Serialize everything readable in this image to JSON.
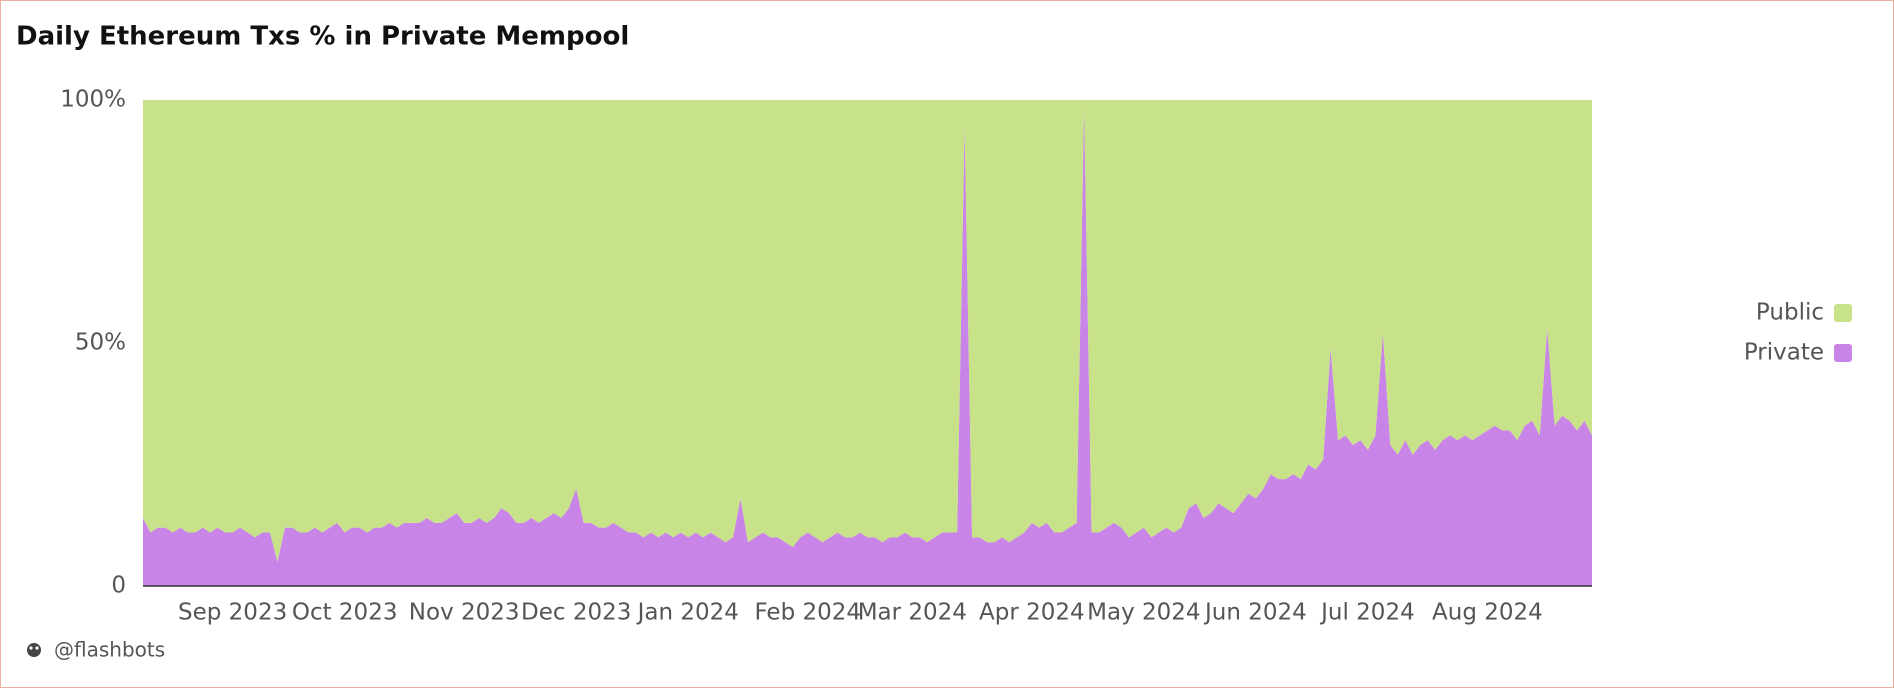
{
  "chart_data": {
    "type": "area",
    "stacked": true,
    "title": "Daily Ethereum Txs % in Private Mempool",
    "categories": [
      null,
      null,
      null,
      null,
      null,
      null,
      null,
      null,
      null,
      null,
      null,
      null,
      "Sep 2023",
      null,
      null,
      null,
      null,
      null,
      null,
      null,
      null,
      null,
      null,
      null,
      null,
      null,
      null,
      "Oct 2023",
      null,
      null,
      null,
      null,
      null,
      null,
      null,
      null,
      null,
      null,
      null,
      null,
      null,
      null,
      null,
      "Nov 2023",
      null,
      null,
      null,
      null,
      null,
      null,
      null,
      null,
      null,
      null,
      null,
      null,
      null,
      null,
      "Dec 2023",
      null,
      null,
      null,
      null,
      null,
      null,
      null,
      null,
      null,
      null,
      null,
      null,
      null,
      null,
      "Jan 2024",
      null,
      null,
      null,
      null,
      null,
      null,
      null,
      null,
      null,
      null,
      null,
      null,
      null,
      null,
      null,
      "Feb 2024",
      null,
      null,
      null,
      null,
      null,
      null,
      null,
      null,
      null,
      null,
      null,
      null,
      null,
      "Mar 2024",
      null,
      null,
      null,
      null,
      null,
      null,
      null,
      null,
      null,
      null,
      null,
      null,
      null,
      null,
      null,
      "Apr 2024",
      null,
      null,
      null,
      null,
      null,
      null,
      null,
      null,
      null,
      null,
      null,
      null,
      null,
      null,
      "May 2024",
      null,
      null,
      null,
      null,
      null,
      null,
      null,
      null,
      null,
      null,
      null,
      null,
      null,
      null,
      "Jun 2024",
      null,
      null,
      null,
      null,
      null,
      null,
      null,
      null,
      null,
      null,
      null,
      null,
      null,
      null,
      "Jul 2024",
      null,
      null,
      null,
      null,
      null,
      null,
      null,
      null,
      null,
      null,
      null,
      null,
      null,
      null,
      null,
      "Aug 2024",
      null,
      null,
      null,
      null,
      null,
      null,
      null,
      null,
      null,
      null,
      null,
      null,
      null,
      null
    ],
    "series": [
      {
        "name": "Private",
        "color": "#c984e8",
        "values": [
          14,
          11,
          12,
          12,
          11,
          12,
          11,
          11,
          12,
          11,
          12,
          11,
          11,
          12,
          11,
          10,
          11,
          11,
          5,
          12,
          12,
          11,
          11,
          12,
          11,
          12,
          13,
          11,
          12,
          12,
          11,
          12,
          12,
          13,
          12,
          13,
          13,
          13,
          14,
          13,
          13,
          14,
          15,
          13,
          13,
          14,
          13,
          14,
          16,
          15,
          13,
          13,
          14,
          13,
          14,
          15,
          14,
          16,
          20,
          13,
          13,
          12,
          12,
          13,
          12,
          11,
          11,
          10,
          11,
          10,
          11,
          10,
          11,
          10,
          11,
          10,
          11,
          10,
          9,
          10,
          18,
          9,
          10,
          11,
          10,
          10,
          9,
          8,
          10,
          11,
          10,
          9,
          10,
          11,
          10,
          10,
          11,
          10,
          10,
          9,
          10,
          10,
          11,
          10,
          10,
          9,
          10,
          11,
          11,
          11,
          95,
          10,
          10,
          9,
          9,
          10,
          9,
          10,
          11,
          13,
          12,
          13,
          11,
          11,
          12,
          13,
          99,
          11,
          11,
          12,
          13,
          12,
          10,
          11,
          12,
          10,
          11,
          12,
          11,
          12,
          16,
          17,
          14,
          15,
          17,
          16,
          15,
          17,
          19,
          18,
          20,
          23,
          22,
          22,
          23,
          22,
          25,
          24,
          26,
          49,
          30,
          31,
          29,
          30,
          28,
          31,
          52,
          29,
          27,
          30,
          27,
          29,
          30,
          28,
          30,
          31,
          30,
          31,
          30,
          31,
          32,
          33,
          32,
          32,
          30,
          33,
          34,
          31,
          53,
          33,
          35,
          34,
          32,
          34,
          31
        ]
      },
      {
        "name": "Public",
        "color": "#c8e28a",
        "values": [
          86,
          89,
          88,
          88,
          89,
          88,
          89,
          89,
          88,
          89,
          88,
          89,
          89,
          88,
          89,
          90,
          89,
          89,
          95,
          88,
          88,
          89,
          89,
          88,
          89,
          88,
          87,
          89,
          88,
          88,
          89,
          88,
          88,
          87,
          88,
          87,
          87,
          87,
          86,
          87,
          87,
          86,
          85,
          87,
          87,
          86,
          87,
          86,
          84,
          85,
          87,
          87,
          86,
          87,
          86,
          85,
          86,
          84,
          80,
          87,
          87,
          88,
          88,
          87,
          88,
          89,
          89,
          90,
          89,
          90,
          89,
          90,
          89,
          90,
          89,
          90,
          89,
          90,
          91,
          90,
          82,
          91,
          90,
          89,
          90,
          90,
          91,
          92,
          90,
          89,
          90,
          91,
          90,
          89,
          90,
          90,
          89,
          90,
          90,
          91,
          90,
          90,
          89,
          90,
          90,
          91,
          90,
          89,
          89,
          89,
          5,
          90,
          90,
          91,
          91,
          90,
          91,
          90,
          89,
          87,
          88,
          87,
          89,
          89,
          88,
          87,
          1,
          89,
          89,
          88,
          87,
          88,
          90,
          89,
          88,
          90,
          89,
          88,
          89,
          88,
          84,
          83,
          86,
          85,
          83,
          84,
          85,
          83,
          81,
          82,
          80,
          77,
          78,
          78,
          77,
          78,
          75,
          76,
          74,
          51,
          70,
          69,
          71,
          70,
          72,
          69,
          48,
          71,
          73,
          70,
          73,
          71,
          70,
          72,
          70,
          69,
          70,
          69,
          70,
          69,
          68,
          67,
          68,
          68,
          70,
          67,
          66,
          69,
          47,
          67,
          65,
          66,
          68,
          66,
          69
        ]
      }
    ],
    "ylim": [
      0,
      100
    ],
    "yticks": [
      0,
      {
        "value": 50,
        "label": "50%"
      },
      {
        "value": 100,
        "label": "100%"
      }
    ],
    "legend": "right"
  },
  "footer": {
    "text": "@flashbots"
  }
}
